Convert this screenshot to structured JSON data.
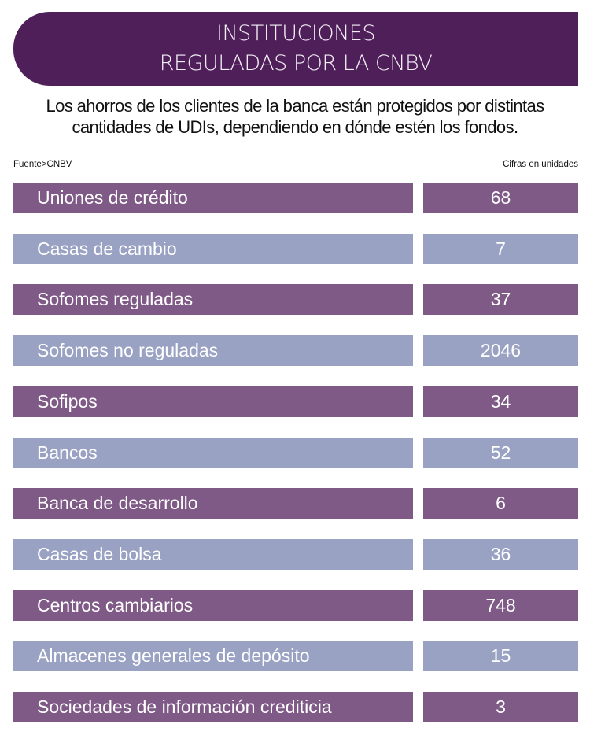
{
  "header": {
    "title_line1": "INSTITUCIONES",
    "title_line2": "REGULADAS POR LA CNBV"
  },
  "subtitle": "Los ahorros de los clientes de la banca están protegidos por distintas cantidades de UDIs, dependiendo en dónde estén los fondos.",
  "source": "Fuente>CNBV",
  "units": "Cifras en unidades",
  "colors": {
    "header": "#4f1f5a",
    "row_dark": "#7f5a87",
    "row_light": "#9aa2c4"
  },
  "chart_data": {
    "type": "table",
    "rows": [
      {
        "label": "Uniones de crédito",
        "value": "68"
      },
      {
        "label": "Casas de cambio",
        "value": "7"
      },
      {
        "label": "Sofomes reguladas",
        "value": "37"
      },
      {
        "label": "Sofomes no reguladas",
        "value": "2046"
      },
      {
        "label": "Sofipos",
        "value": "34"
      },
      {
        "label": "Bancos",
        "value": "52"
      },
      {
        "label": "Banca de desarrollo",
        "value": "6"
      },
      {
        "label": "Casas de bolsa",
        "value": "36"
      },
      {
        "label": "Centros cambiarios",
        "value": "748"
      },
      {
        "label": "Almacenes generales de depósito",
        "value": "15"
      },
      {
        "label": "Sociedades de información crediticia",
        "value": "3"
      }
    ]
  }
}
